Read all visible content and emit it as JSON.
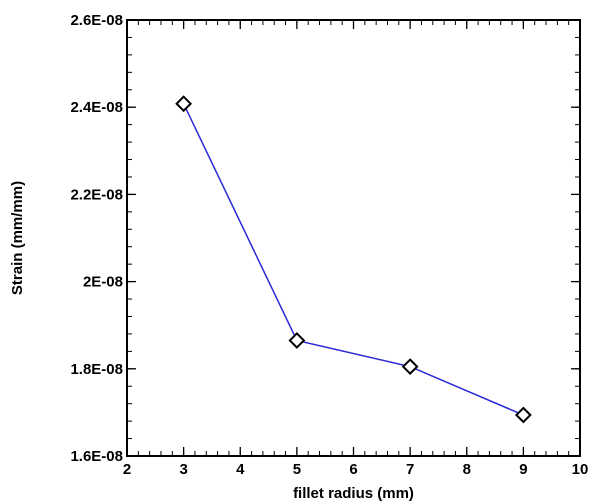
{
  "chart_data": {
    "type": "line",
    "title": "",
    "xlabel": "fillet radius (mm)",
    "ylabel": "Strain (mm/mm)",
    "xlim": [
      2,
      10
    ],
    "ylim": [
      1.6e-08,
      2.6e-08
    ],
    "x_ticks": [
      2,
      3,
      4,
      5,
      6,
      7,
      8,
      9,
      10
    ],
    "x_tick_labels": [
      "2",
      "3",
      "4",
      "5",
      "6",
      "7",
      "8",
      "9",
      "10"
    ],
    "y_ticks": [
      1.6e-08,
      1.8e-08,
      2e-08,
      2.2e-08,
      2.4e-08,
      2.6e-08
    ],
    "y_tick_labels": [
      "1.6E-08",
      "1.8E-08",
      "2E-08",
      "2.2E-08",
      "2.4E-08",
      "2.6E-08"
    ],
    "x_minor_step": 0.2,
    "y_minor_step": 4e-10,
    "grid": false,
    "marker": "diamond",
    "line_color": "#2b2bd6",
    "marker_color": "#000000",
    "series": [
      {
        "x": [
          3,
          5,
          7,
          9
        ],
        "values": [
          2.408e-08,
          1.865e-08,
          1.805e-08,
          1.694e-08
        ]
      }
    ]
  }
}
